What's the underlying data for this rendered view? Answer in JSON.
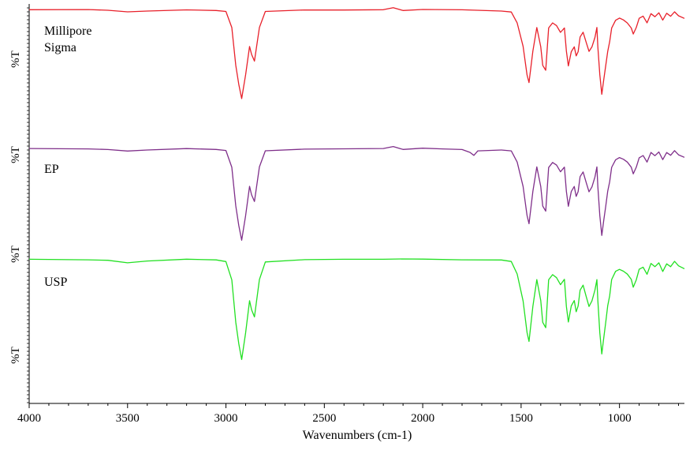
{
  "chart_data": {
    "type": "line",
    "xlabel": "Wavenumbers (cm-1)",
    "ylabel": "%T",
    "xlim": [
      4000,
      670
    ],
    "x_ticks": [
      4000,
      3500,
      3000,
      2500,
      2000,
      1500,
      1000
    ],
    "grid": false,
    "series": [
      {
        "name": "Millipore Sigma",
        "label_lines": [
          "Millipore",
          "Sigma"
        ],
        "color": "#e8202a",
        "points": [
          [
            4000,
            99
          ],
          [
            3700,
            99
          ],
          [
            3600,
            98.5
          ],
          [
            3500,
            97
          ],
          [
            3400,
            98
          ],
          [
            3200,
            99
          ],
          [
            3050,
            98
          ],
          [
            3000,
            97
          ],
          [
            2970,
            80
          ],
          [
            2950,
            40
          ],
          [
            2935,
            20
          ],
          [
            2920,
            5
          ],
          [
            2900,
            30
          ],
          [
            2880,
            60
          ],
          [
            2870,
            52
          ],
          [
            2855,
            45
          ],
          [
            2830,
            80
          ],
          [
            2800,
            97
          ],
          [
            2600,
            99
          ],
          [
            2400,
            99
          ],
          [
            2200,
            99
          ],
          [
            2150,
            101
          ],
          [
            2100,
            98
          ],
          [
            2000,
            99
          ],
          [
            1800,
            99
          ],
          [
            1600,
            98
          ],
          [
            1550,
            97
          ],
          [
            1520,
            85
          ],
          [
            1490,
            60
          ],
          [
            1470,
            30
          ],
          [
            1460,
            22
          ],
          [
            1440,
            55
          ],
          [
            1420,
            80
          ],
          [
            1400,
            60
          ],
          [
            1390,
            40
          ],
          [
            1375,
            35
          ],
          [
            1360,
            80
          ],
          [
            1340,
            85
          ],
          [
            1320,
            82
          ],
          [
            1300,
            75
          ],
          [
            1280,
            80
          ],
          [
            1270,
            55
          ],
          [
            1260,
            40
          ],
          [
            1245,
            55
          ],
          [
            1230,
            60
          ],
          [
            1220,
            50
          ],
          [
            1210,
            55
          ],
          [
            1200,
            70
          ],
          [
            1185,
            75
          ],
          [
            1170,
            65
          ],
          [
            1155,
            55
          ],
          [
            1140,
            60
          ],
          [
            1125,
            70
          ],
          [
            1115,
            80
          ],
          [
            1110,
            60
          ],
          [
            1100,
            30
          ],
          [
            1090,
            10
          ],
          [
            1080,
            25
          ],
          [
            1070,
            40
          ],
          [
            1060,
            55
          ],
          [
            1050,
            65
          ],
          [
            1040,
            80
          ],
          [
            1020,
            88
          ],
          [
            1000,
            90
          ],
          [
            980,
            88
          ],
          [
            960,
            85
          ],
          [
            940,
            80
          ],
          [
            930,
            73
          ],
          [
            915,
            80
          ],
          [
            900,
            90
          ],
          [
            880,
            92
          ],
          [
            860,
            85
          ],
          [
            840,
            95
          ],
          [
            820,
            92
          ],
          [
            800,
            96
          ],
          [
            780,
            88
          ],
          [
            760,
            95
          ],
          [
            740,
            92
          ],
          [
            720,
            97
          ],
          [
            700,
            93
          ],
          [
            670,
            90
          ]
        ]
      },
      {
        "name": "EP",
        "label_lines": [
          "EP"
        ],
        "color": "#7f2f8a",
        "points": [
          [
            4000,
            99
          ],
          [
            3700,
            99
          ],
          [
            3600,
            98.5
          ],
          [
            3500,
            97
          ],
          [
            3400,
            98
          ],
          [
            3200,
            99
          ],
          [
            3050,
            98
          ],
          [
            3000,
            97
          ],
          [
            2970,
            80
          ],
          [
            2950,
            40
          ],
          [
            2935,
            20
          ],
          [
            2920,
            5
          ],
          [
            2900,
            30
          ],
          [
            2880,
            60
          ],
          [
            2870,
            52
          ],
          [
            2855,
            45
          ],
          [
            2830,
            80
          ],
          [
            2800,
            97
          ],
          [
            2600,
            99
          ],
          [
            2400,
            99
          ],
          [
            2200,
            99
          ],
          [
            2150,
            101
          ],
          [
            2100,
            98
          ],
          [
            2000,
            99.5
          ],
          [
            1900,
            99
          ],
          [
            1800,
            98.5
          ],
          [
            1760,
            95
          ],
          [
            1740,
            92
          ],
          [
            1720,
            97
          ],
          [
            1600,
            98
          ],
          [
            1550,
            97
          ],
          [
            1520,
            85
          ],
          [
            1490,
            60
          ],
          [
            1470,
            30
          ],
          [
            1460,
            22
          ],
          [
            1440,
            55
          ],
          [
            1420,
            80
          ],
          [
            1400,
            60
          ],
          [
            1390,
            40
          ],
          [
            1375,
            35
          ],
          [
            1360,
            80
          ],
          [
            1340,
            85
          ],
          [
            1320,
            82
          ],
          [
            1300,
            75
          ],
          [
            1280,
            80
          ],
          [
            1270,
            55
          ],
          [
            1260,
            40
          ],
          [
            1245,
            55
          ],
          [
            1230,
            60
          ],
          [
            1220,
            50
          ],
          [
            1210,
            55
          ],
          [
            1200,
            70
          ],
          [
            1185,
            75
          ],
          [
            1170,
            65
          ],
          [
            1155,
            55
          ],
          [
            1140,
            60
          ],
          [
            1125,
            70
          ],
          [
            1115,
            80
          ],
          [
            1110,
            60
          ],
          [
            1100,
            30
          ],
          [
            1090,
            10
          ],
          [
            1080,
            25
          ],
          [
            1070,
            40
          ],
          [
            1060,
            55
          ],
          [
            1050,
            65
          ],
          [
            1040,
            80
          ],
          [
            1020,
            88
          ],
          [
            1000,
            90
          ],
          [
            980,
            88
          ],
          [
            960,
            85
          ],
          [
            940,
            80
          ],
          [
            930,
            73
          ],
          [
            915,
            80
          ],
          [
            900,
            90
          ],
          [
            880,
            92
          ],
          [
            860,
            85
          ],
          [
            840,
            95
          ],
          [
            820,
            92
          ],
          [
            800,
            96
          ],
          [
            780,
            88
          ],
          [
            760,
            95
          ],
          [
            740,
            92
          ],
          [
            720,
            97
          ],
          [
            700,
            93
          ],
          [
            670,
            90
          ]
        ]
      },
      {
        "name": "USP",
        "label_lines": [
          "USP"
        ],
        "color": "#22e022",
        "points": [
          [
            4000,
            99
          ],
          [
            3700,
            99
          ],
          [
            3600,
            98.5
          ],
          [
            3500,
            96
          ],
          [
            3400,
            97.5
          ],
          [
            3200,
            99
          ],
          [
            3050,
            98.5
          ],
          [
            3000,
            97
          ],
          [
            2970,
            80
          ],
          [
            2950,
            40
          ],
          [
            2935,
            20
          ],
          [
            2920,
            5
          ],
          [
            2900,
            30
          ],
          [
            2880,
            60
          ],
          [
            2870,
            52
          ],
          [
            2855,
            45
          ],
          [
            2830,
            80
          ],
          [
            2800,
            97
          ],
          [
            2600,
            99
          ],
          [
            2400,
            99
          ],
          [
            2200,
            99
          ],
          [
            2100,
            99.5
          ],
          [
            2000,
            99.5
          ],
          [
            1800,
            99
          ],
          [
            1600,
            98.5
          ],
          [
            1550,
            97
          ],
          [
            1520,
            85
          ],
          [
            1490,
            60
          ],
          [
            1470,
            30
          ],
          [
            1460,
            22
          ],
          [
            1440,
            55
          ],
          [
            1420,
            80
          ],
          [
            1400,
            60
          ],
          [
            1390,
            40
          ],
          [
            1375,
            35
          ],
          [
            1360,
            80
          ],
          [
            1340,
            85
          ],
          [
            1320,
            82
          ],
          [
            1300,
            75
          ],
          [
            1280,
            80
          ],
          [
            1270,
            55
          ],
          [
            1260,
            40
          ],
          [
            1245,
            55
          ],
          [
            1230,
            60
          ],
          [
            1220,
            50
          ],
          [
            1210,
            55
          ],
          [
            1200,
            70
          ],
          [
            1185,
            75
          ],
          [
            1170,
            65
          ],
          [
            1155,
            55
          ],
          [
            1140,
            60
          ],
          [
            1125,
            70
          ],
          [
            1115,
            80
          ],
          [
            1110,
            60
          ],
          [
            1100,
            30
          ],
          [
            1090,
            10
          ],
          [
            1080,
            25
          ],
          [
            1070,
            40
          ],
          [
            1060,
            55
          ],
          [
            1050,
            65
          ],
          [
            1040,
            80
          ],
          [
            1020,
            88
          ],
          [
            1000,
            90
          ],
          [
            980,
            88
          ],
          [
            960,
            85
          ],
          [
            940,
            80
          ],
          [
            930,
            73
          ],
          [
            915,
            80
          ],
          [
            900,
            90
          ],
          [
            880,
            92
          ],
          [
            860,
            85
          ],
          [
            840,
            95
          ],
          [
            820,
            92
          ],
          [
            800,
            96
          ],
          [
            780,
            88
          ],
          [
            760,
            95
          ],
          [
            740,
            92
          ],
          [
            720,
            97
          ],
          [
            700,
            93
          ],
          [
            670,
            90
          ]
        ]
      }
    ]
  }
}
